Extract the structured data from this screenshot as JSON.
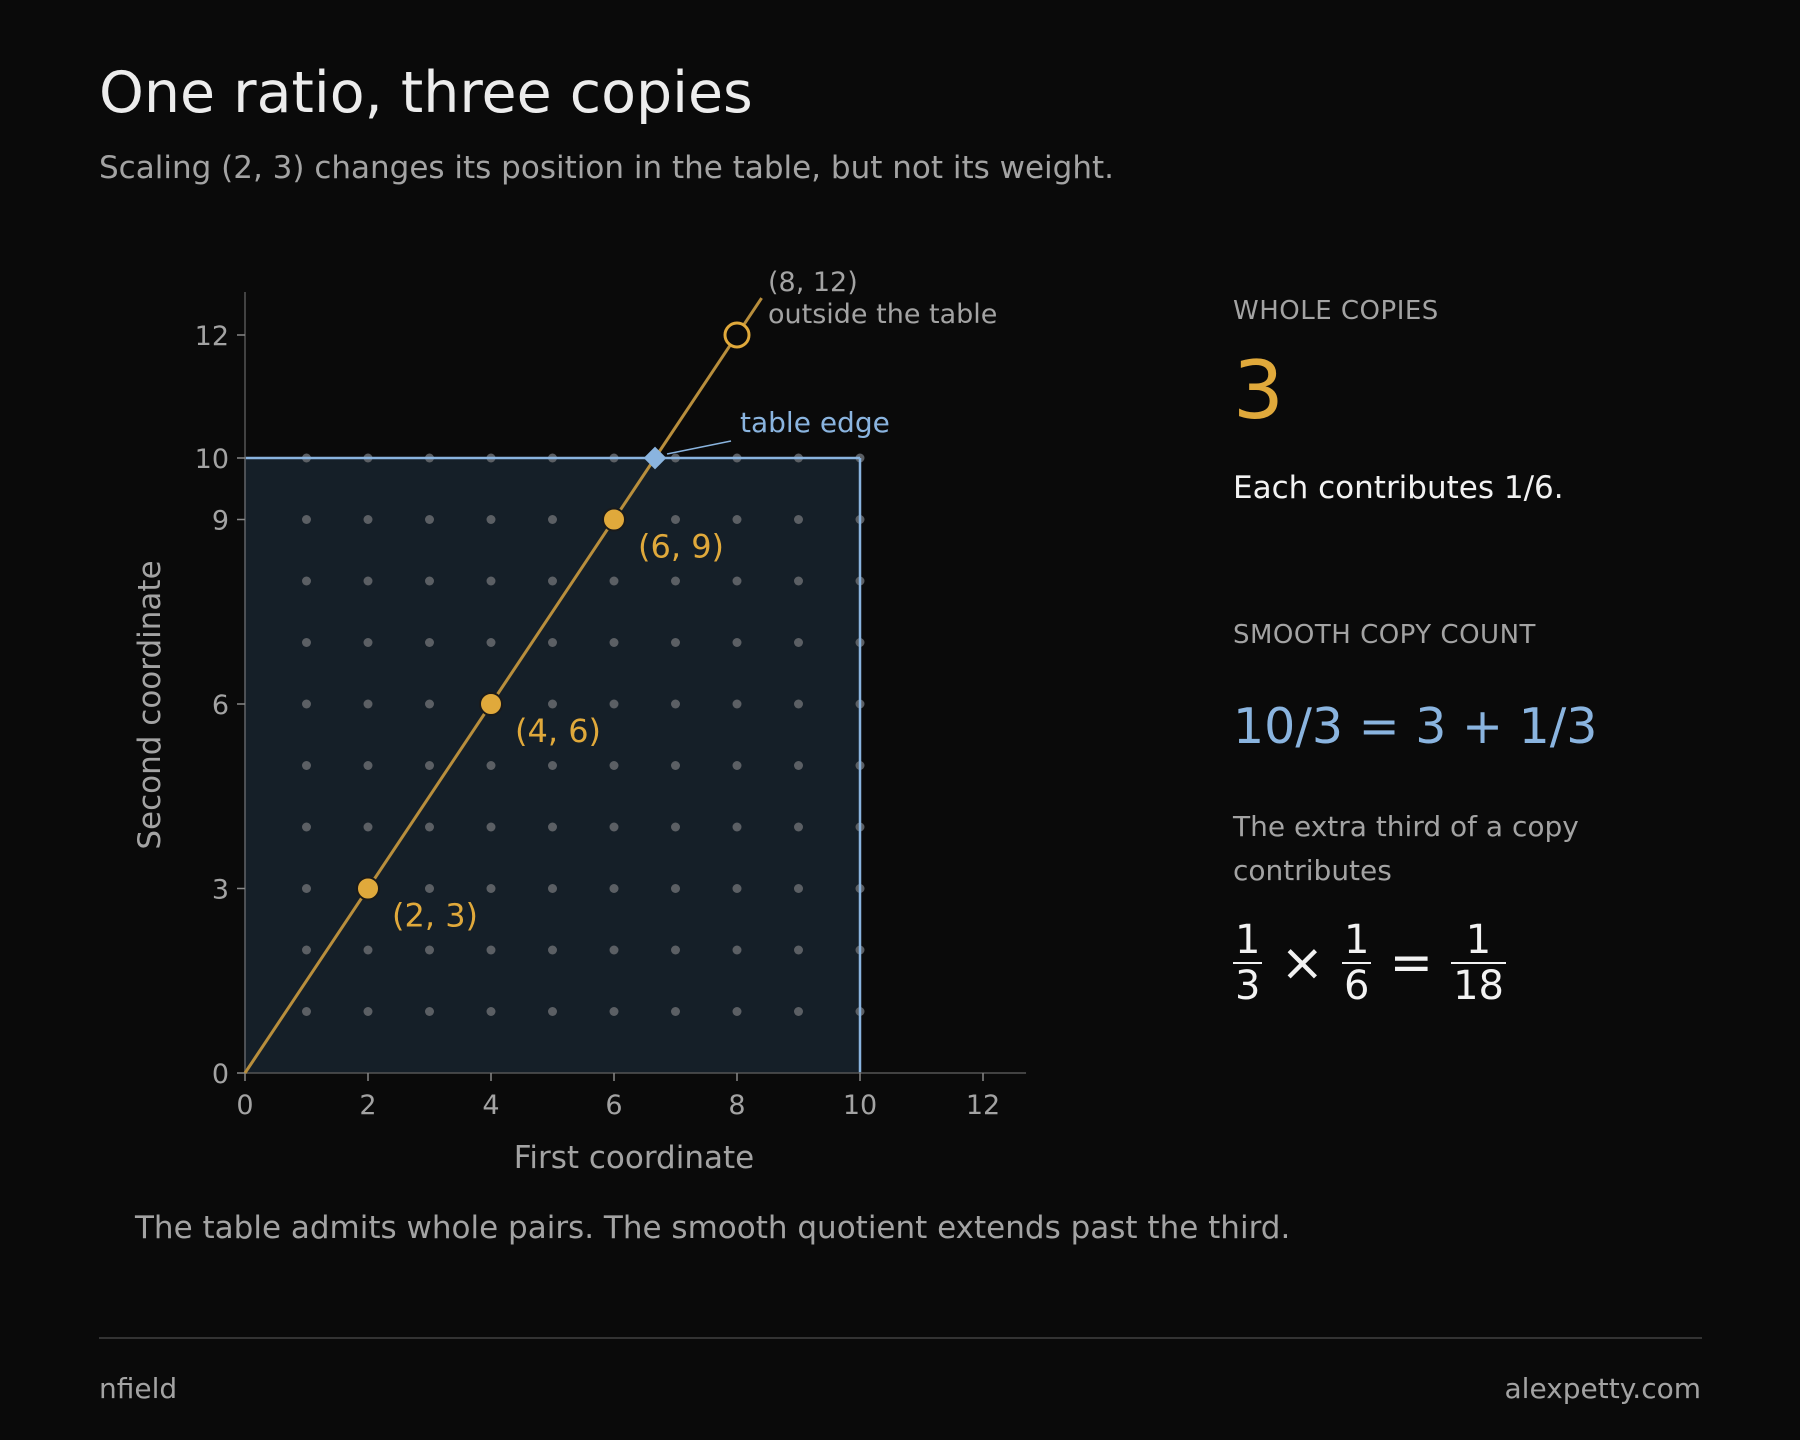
{
  "header": {
    "title": "One ratio, three copies",
    "subtitle": "Scaling (2, 3) changes its position in the table, but not its weight."
  },
  "chart_data": {
    "type": "scatter",
    "xlabel": "First coordinate",
    "ylabel": "Second coordinate",
    "xlim": [
      0,
      12.7
    ],
    "ylim": [
      0,
      13
    ],
    "x_ticks": [
      0,
      2,
      4,
      6,
      8,
      10,
      12
    ],
    "y_ticks": [
      0,
      3,
      6,
      9,
      10,
      12
    ],
    "table": {
      "x_max": 10,
      "y_max": 10,
      "grid": "integer points 1..10"
    },
    "ray": {
      "slope": 1.5,
      "from": [
        0,
        0
      ],
      "to": [
        8.4,
        12.6
      ]
    },
    "copies": [
      {
        "x": 2,
        "y": 3,
        "label": "(2, 3)",
        "inside": true
      },
      {
        "x": 4,
        "y": 6,
        "label": "(4, 6)",
        "inside": true
      },
      {
        "x": 6,
        "y": 9,
        "label": "(6, 9)",
        "inside": true
      }
    ],
    "outside_point": {
      "x": 8,
      "y": 12,
      "label_line1": "(8, 12)",
      "label_line2": "outside the table"
    },
    "edge_point": {
      "x": 6.667,
      "y": 10,
      "label": "table edge"
    },
    "colors": {
      "copy": "#e0a93b",
      "ray": "#b88e3c",
      "table_edge": "#8ab4df",
      "table_fill": "#151f28",
      "grid_dot": "#5b5f64",
      "axis": "#555555",
      "tick_text": "#a3a3a3"
    }
  },
  "sidebar": {
    "whole": {
      "kicker": "WHOLE COPIES",
      "value": "3",
      "statement": "Each contributes 1/6."
    },
    "smooth": {
      "kicker": "SMOOTH COPY COUNT",
      "formula": "10/3 = 3 + 1/3",
      "note": "The extra third of a copy contributes",
      "equation": {
        "a_num": "1",
        "a_den": "3",
        "op1": "×",
        "b_num": "1",
        "b_den": "6",
        "op2": "=",
        "c_num": "1",
        "c_den": "18"
      }
    }
  },
  "caption": "The table admits whole pairs. The smooth quotient extends past the third.",
  "footer": {
    "left": "nfield",
    "right": "alexpetty.com"
  }
}
